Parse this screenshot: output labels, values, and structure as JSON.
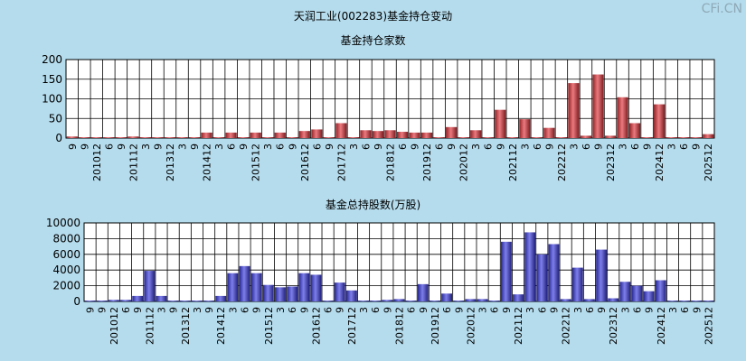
{
  "page": {
    "title": "天润工业(002283)基金持仓变动",
    "watermark": "CFi.CN"
  },
  "chart_data": [
    {
      "type": "bar",
      "title": "基金持仓家数",
      "ylim": [
        0,
        200
      ],
      "yticks": [
        "200",
        "150",
        "100",
        "50",
        "0"
      ],
      "grid": true,
      "bar_color": "#e0333a",
      "categories": [
        "9",
        "9",
        "201012",
        "6",
        "9",
        "201112",
        "3",
        "9",
        "201312",
        "3",
        "9",
        "201412",
        "3",
        "6",
        "9",
        "201512",
        "3",
        "6",
        "9",
        "201612",
        "6",
        "9",
        "201712",
        "3",
        "6",
        "9",
        "201812",
        "6",
        "9",
        "201912",
        "6",
        "9",
        "202012",
        "3",
        "6",
        "9",
        "202112",
        "3",
        "6",
        "9",
        "202212",
        "3",
        "6",
        "9",
        "202312",
        "3",
        "6",
        "9",
        "202412",
        "3",
        "6",
        "9",
        "202512"
      ],
      "values": [
        4,
        2,
        2,
        2,
        2,
        4,
        2,
        2,
        2,
        2,
        2,
        14,
        2,
        14,
        2,
        14,
        2,
        14,
        2,
        18,
        22,
        2,
        38,
        2,
        20,
        18,
        20,
        16,
        14,
        14,
        2,
        28,
        2,
        20,
        2,
        72,
        2,
        48,
        2,
        26,
        2,
        140,
        6,
        162,
        6,
        104,
        38,
        2,
        86,
        2,
        2,
        2,
        10
      ]
    },
    {
      "type": "bar",
      "title": "基金总持股数(万股)",
      "ylim": [
        0,
        10000
      ],
      "yticks": [
        "10000",
        "8000",
        "6000",
        "4000",
        "2000",
        "0"
      ],
      "grid": true,
      "bar_color": "#3a3ae0",
      "categories": [
        "9",
        "9",
        "201012",
        "6",
        "9",
        "201112",
        "3",
        "9",
        "201312",
        "3",
        "9",
        "201412",
        "3",
        "6",
        "9",
        "201512",
        "3",
        "6",
        "9",
        "201612",
        "6",
        "9",
        "201712",
        "3",
        "6",
        "9",
        "201812",
        "6",
        "9",
        "201912",
        "6",
        "9",
        "202012",
        "3",
        "6",
        "9",
        "202112",
        "3",
        "6",
        "9",
        "202212",
        "3",
        "6",
        "9",
        "202312",
        "3",
        "6",
        "9",
        "202412",
        "3",
        "6",
        "9",
        "202512"
      ],
      "values": [
        80,
        80,
        200,
        200,
        700,
        3900,
        700,
        80,
        80,
        80,
        80,
        700,
        3600,
        4500,
        3600,
        2100,
        1800,
        1900,
        3600,
        3400,
        80,
        2400,
        1400,
        80,
        80,
        200,
        300,
        80,
        2200,
        80,
        1000,
        80,
        300,
        300,
        80,
        7600,
        900,
        8800,
        6000,
        7300,
        300,
        4300,
        300,
        6600,
        400,
        2500,
        2000,
        1300,
        2700,
        80,
        80,
        80,
        80
      ]
    }
  ]
}
